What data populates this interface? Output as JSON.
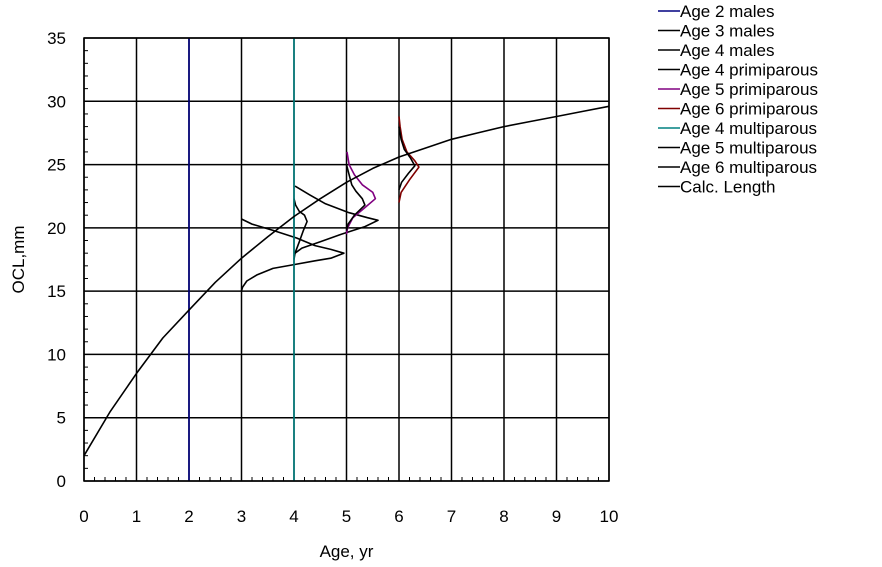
{
  "chart_data": {
    "type": "line",
    "xlabel": "Age, yr",
    "ylabel": "OCL,mm",
    "xlim": [
      0,
      10
    ],
    "ylim": [
      0,
      35
    ],
    "xticks": [
      0,
      1,
      2,
      3,
      4,
      5,
      6,
      7,
      8,
      9,
      10
    ],
    "yticks": [
      0,
      5,
      10,
      15,
      20,
      25,
      30,
      35
    ],
    "grid": true,
    "legend_position": "top-right-outside",
    "series": [
      {
        "name": "Age 2 males",
        "color": "#000080",
        "kind": "vertical",
        "x": 2
      },
      {
        "name": "Age 3 males",
        "color": "#000000",
        "kind": "distribution",
        "points": [
          [
            3.0,
            15.0
          ],
          [
            3.02,
            15.3
          ],
          [
            3.1,
            15.8
          ],
          [
            3.3,
            16.3
          ],
          [
            3.6,
            16.8
          ],
          [
            4.0,
            17.1
          ],
          [
            4.4,
            17.4
          ],
          [
            4.7,
            17.6
          ],
          [
            4.95,
            18.0
          ],
          [
            4.7,
            18.3
          ],
          [
            4.4,
            18.6
          ],
          [
            4.05,
            19.2
          ],
          [
            3.6,
            19.8
          ],
          [
            3.2,
            20.3
          ],
          [
            3.0,
            20.7
          ]
        ]
      },
      {
        "name": "Age 4 males",
        "color": "#000000",
        "kind": "distribution",
        "points": [
          [
            4.0,
            17.8
          ],
          [
            4.02,
            18.0
          ],
          [
            4.15,
            18.4
          ],
          [
            4.5,
            18.9
          ],
          [
            4.9,
            19.5
          ],
          [
            5.35,
            20.1
          ],
          [
            5.6,
            20.6
          ],
          [
            5.4,
            20.8
          ],
          [
            5.05,
            21.2
          ],
          [
            4.6,
            21.9
          ],
          [
            4.3,
            22.6
          ],
          [
            4.02,
            23.3
          ]
        ]
      },
      {
        "name": "Age 4 primiparous",
        "color": "#000000",
        "kind": "distribution",
        "points": [
          [
            4.0,
            17.5
          ],
          [
            4.02,
            18.0
          ],
          [
            4.1,
            18.9
          ],
          [
            4.18,
            19.8
          ],
          [
            4.25,
            20.5
          ],
          [
            4.2,
            21.0
          ],
          [
            4.1,
            21.3
          ],
          [
            4.03,
            21.8
          ],
          [
            4.0,
            22.3
          ]
        ]
      },
      {
        "name": "Age 5 primiparous",
        "color": "#800080",
        "kind": "distribution",
        "points": [
          [
            5.0,
            19.5
          ],
          [
            5.02,
            20.0
          ],
          [
            5.12,
            20.8
          ],
          [
            5.35,
            21.6
          ],
          [
            5.55,
            22.3
          ],
          [
            5.5,
            22.8
          ],
          [
            5.3,
            23.4
          ],
          [
            5.15,
            24.2
          ],
          [
            5.05,
            25.0
          ],
          [
            5.01,
            26.0
          ]
        ]
      },
      {
        "name": "Age 6 primiparous",
        "color": "#800000",
        "kind": "distribution",
        "points": [
          [
            6.0,
            22.0
          ],
          [
            6.04,
            22.8
          ],
          [
            6.2,
            23.8
          ],
          [
            6.38,
            24.8
          ],
          [
            6.3,
            25.3
          ],
          [
            6.15,
            26.0
          ],
          [
            6.06,
            27.0
          ],
          [
            6.02,
            28.0
          ],
          [
            6.0,
            28.8
          ]
        ]
      },
      {
        "name": "Age 4 multiparous",
        "color": "#008080",
        "kind": "vertical",
        "x": 4
      },
      {
        "name": "Age 5 multiparous",
        "color": "#000000",
        "kind": "distribution",
        "points": [
          [
            5.0,
            19.8
          ],
          [
            5.03,
            20.3
          ],
          [
            5.15,
            21.0
          ],
          [
            5.35,
            21.8
          ],
          [
            5.3,
            22.3
          ],
          [
            5.18,
            22.9
          ],
          [
            5.1,
            23.4
          ],
          [
            5.05,
            24.2
          ],
          [
            5.0,
            25.0
          ]
        ]
      },
      {
        "name": "Age 6 multiparous",
        "color": "#000000",
        "kind": "distribution",
        "points": [
          [
            6.0,
            23.0
          ],
          [
            6.05,
            23.6
          ],
          [
            6.18,
            24.3
          ],
          [
            6.3,
            24.9
          ],
          [
            6.22,
            25.5
          ],
          [
            6.1,
            26.2
          ],
          [
            6.04,
            27.0
          ],
          [
            6.0,
            28.0
          ]
        ]
      },
      {
        "name": "Calc. Length",
        "color": "#000000",
        "kind": "curve",
        "x": [
          0,
          0.5,
          1,
          1.5,
          2,
          2.5,
          3,
          3.5,
          4,
          4.5,
          5,
          5.5,
          6,
          6.5,
          7,
          7.5,
          8,
          8.5,
          9,
          9.5,
          10
        ],
        "y": [
          2.0,
          5.5,
          8.5,
          11.3,
          13.5,
          15.7,
          17.6,
          19.3,
          20.9,
          22.3,
          23.6,
          24.7,
          25.6,
          26.3,
          27.0,
          27.5,
          28.0,
          28.4,
          28.8,
          29.2,
          29.6
        ]
      }
    ]
  }
}
